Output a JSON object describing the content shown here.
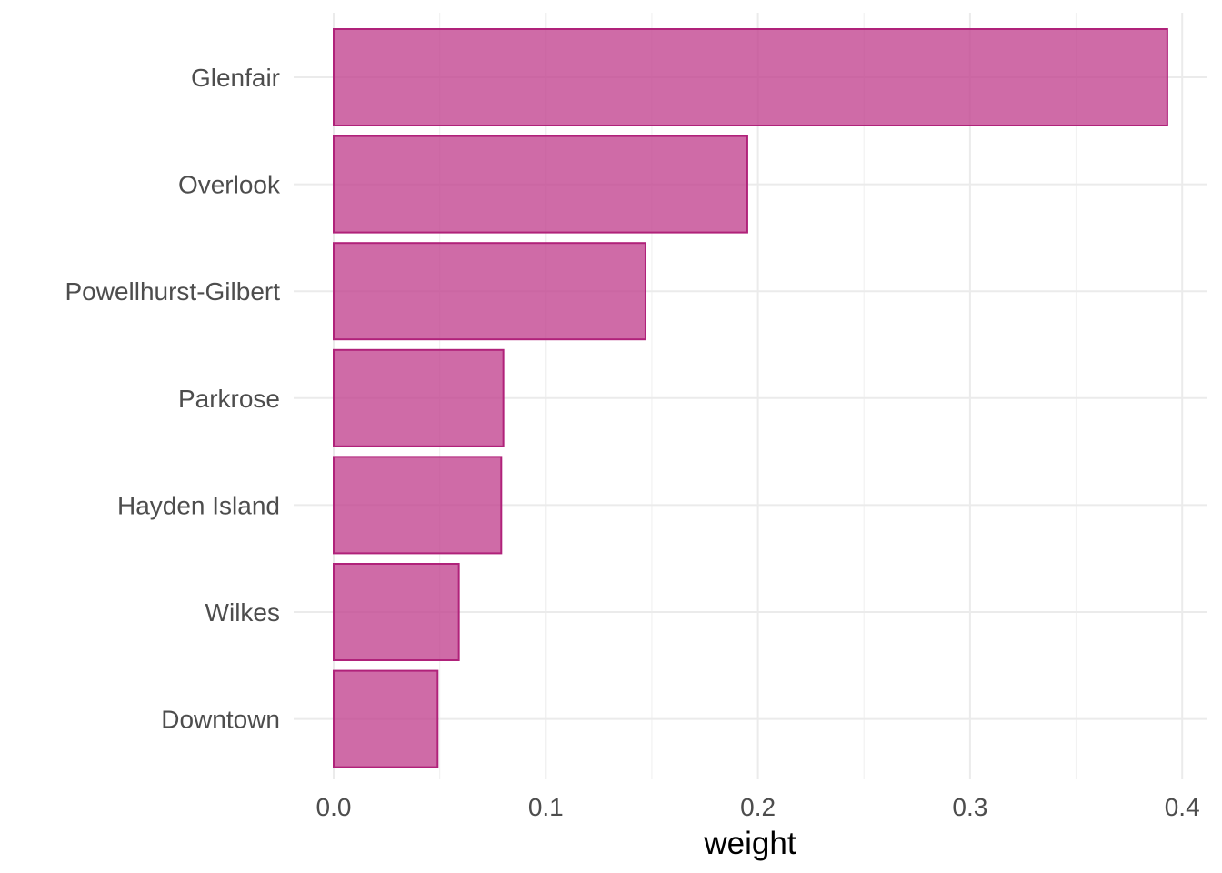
{
  "chart_data": {
    "type": "bar",
    "orientation": "horizontal",
    "title": "",
    "xlabel": "weight",
    "ylabel": "",
    "categories": [
      "Glenfair",
      "Overlook",
      "Powellhurst-Gilbert",
      "Parkrose",
      "Hayden Island",
      "Wilkes",
      "Downtown"
    ],
    "values": [
      0.393,
      0.195,
      0.147,
      0.08,
      0.079,
      0.059,
      0.049
    ],
    "xlim": [
      0,
      0.4
    ],
    "x_ticks": [
      0.0,
      0.1,
      0.2,
      0.3,
      0.4
    ],
    "x_tick_labels": [
      "0.0",
      "0.1",
      "0.2",
      "0.3",
      "0.4"
    ],
    "grid": true,
    "legend": "none",
    "colors": {
      "bar_fill": "#c2418e",
      "bar_outline": "#b0227a",
      "grid": "#ebebeb"
    }
  }
}
